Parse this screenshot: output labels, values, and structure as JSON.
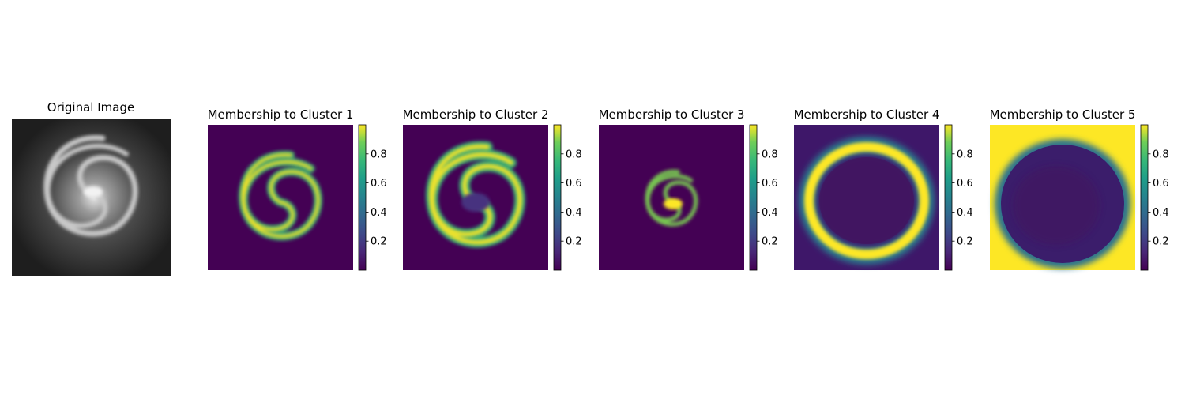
{
  "chart_data": [
    {
      "type": "image",
      "title": "Original Image",
      "colormap": "gray"
    },
    {
      "type": "heatmap",
      "title": "Membership to Cluster 1",
      "colormap": "viridis",
      "pattern": "inner-spiral-arms",
      "colorbar": {
        "range": [
          0.0,
          1.0
        ],
        "ticks": [
          0.2,
          0.4,
          0.6,
          0.8
        ],
        "tick_labels": [
          "0.2",
          "0.4",
          "0.6",
          "0.8"
        ]
      }
    },
    {
      "type": "heatmap",
      "title": "Membership to Cluster 2",
      "colormap": "viridis",
      "pattern": "spiral-arms",
      "colorbar": {
        "range": [
          0.0,
          1.0
        ],
        "ticks": [
          0.2,
          0.4,
          0.6,
          0.8
        ],
        "tick_labels": [
          "0.2",
          "0.4",
          "0.6",
          "0.8"
        ]
      }
    },
    {
      "type": "heatmap",
      "title": "Membership to Cluster 3",
      "colormap": "viridis",
      "pattern": "galaxy-core",
      "colorbar": {
        "range": [
          0.0,
          1.0
        ],
        "ticks": [
          0.2,
          0.4,
          0.6,
          0.8
        ],
        "tick_labels": [
          "0.2",
          "0.4",
          "0.6",
          "0.8"
        ]
      }
    },
    {
      "type": "heatmap",
      "title": "Membership to Cluster 4",
      "colormap": "viridis",
      "pattern": "outer-ring",
      "colorbar": {
        "range": [
          0.0,
          1.0
        ],
        "ticks": [
          0.2,
          0.4,
          0.6,
          0.8
        ],
        "tick_labels": [
          "0.2",
          "0.4",
          "0.6",
          "0.8"
        ]
      }
    },
    {
      "type": "heatmap",
      "title": "Membership to Cluster 5",
      "colormap": "viridis",
      "pattern": "background",
      "colorbar": {
        "range": [
          0.0,
          1.0
        ],
        "ticks": [
          0.2,
          0.4,
          0.6,
          0.8
        ],
        "tick_labels": [
          "0.2",
          "0.4",
          "0.6",
          "0.8"
        ]
      }
    }
  ],
  "colors": {
    "viridis_low": "#440154",
    "viridis_mid": "#21918c",
    "viridis_high": "#fde725"
  }
}
